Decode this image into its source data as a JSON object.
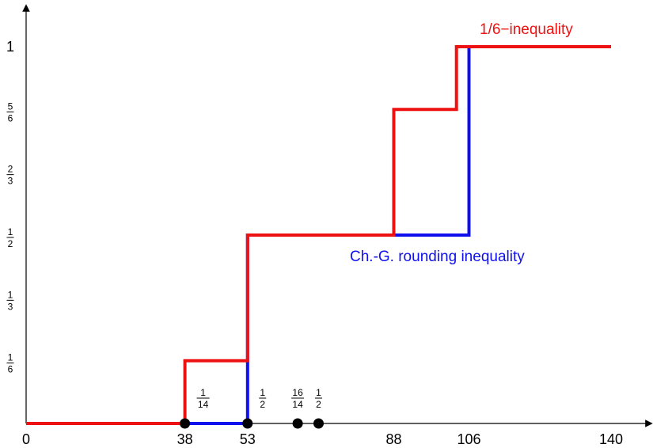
{
  "chart_data": {
    "type": "line",
    "step": true,
    "xlim": [
      0,
      140
    ],
    "ylim": [
      0,
      1
    ],
    "grid": false,
    "x_ticks": [
      {
        "value": 0,
        "label": "0"
      },
      {
        "value": 38,
        "label": "38"
      },
      {
        "value": 53,
        "label": "53"
      },
      {
        "value": 88,
        "label": "88"
      },
      {
        "value": 106,
        "label": "106"
      },
      {
        "value": 140,
        "label": "140"
      }
    ],
    "y_ticks": [
      {
        "value": 0.1667,
        "num": "1",
        "den": "6"
      },
      {
        "value": 0.3333,
        "num": "1",
        "den": "3"
      },
      {
        "value": 0.5,
        "num": "1",
        "den": "2"
      },
      {
        "value": 0.6667,
        "num": "2",
        "den": "3"
      },
      {
        "value": 0.8333,
        "num": "5",
        "den": "6"
      },
      {
        "value": 1,
        "label": "1"
      }
    ],
    "series": [
      {
        "name": "Ch.-G. rounding inequality",
        "color": "#1010ee",
        "points": [
          [
            0,
            0
          ],
          [
            38,
            0
          ],
          [
            53,
            0
          ],
          [
            53,
            0.1667
          ],
          [
            53,
            0.5
          ],
          [
            88,
            0.5
          ],
          [
            106,
            0.5
          ],
          [
            106,
            1
          ],
          [
            140,
            1
          ]
        ]
      },
      {
        "name": "1/6−inequality",
        "color": "#ee1111",
        "points": [
          [
            0,
            0
          ],
          [
            38,
            0
          ],
          [
            38,
            0.1667
          ],
          [
            53,
            0.1667
          ],
          [
            53,
            0.5
          ],
          [
            88,
            0.5
          ],
          [
            88,
            0.8333
          ],
          [
            103,
            0.8333
          ],
          [
            103,
            1
          ],
          [
            140,
            1
          ]
        ]
      }
    ],
    "markers": [
      {
        "x": 38,
        "num": "1",
        "den": "14"
      },
      {
        "x": 53,
        "num": "1",
        "den": "2"
      },
      {
        "x": 65,
        "num": "16",
        "den": "14"
      },
      {
        "x": 70,
        "num": "1",
        "den": "2"
      }
    ],
    "labels": {
      "red": "1/6−inequality",
      "blue": "Ch.-G. rounding inequality"
    }
  }
}
